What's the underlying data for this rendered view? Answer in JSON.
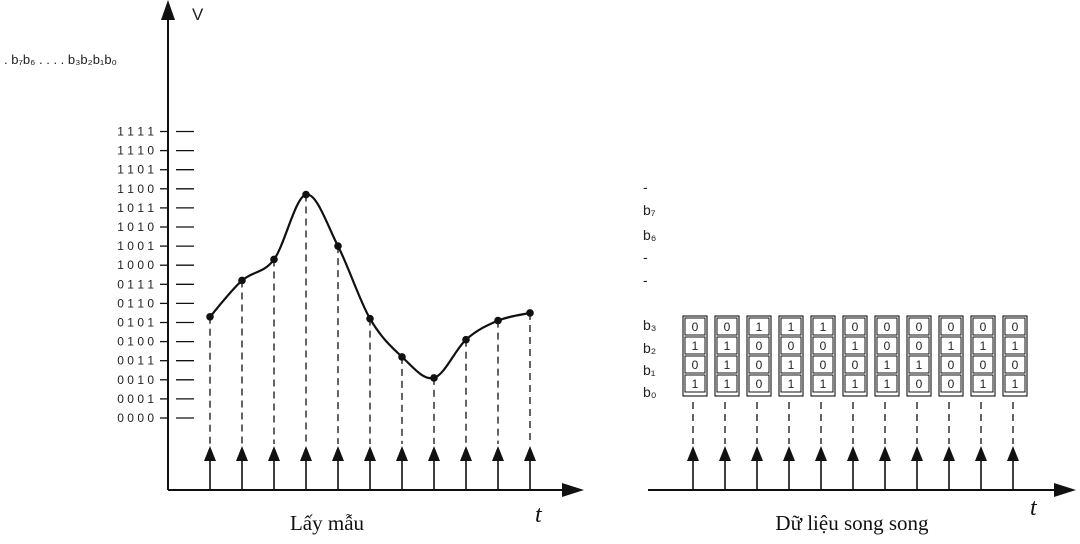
{
  "left_diagram": {
    "axis_v_label": "V",
    "bits_header": ". b₇b₆ . . . . b₃b₂b₁b₀",
    "levels": [
      "0 0 0 0",
      "0 0 0 1",
      "0 0 1 0",
      "0 0 1 1",
      "0 1 0 0",
      "0 1 0 1",
      "0 1 1 0",
      "0 1 1 1",
      "1 0 0 0",
      "1 0 0 1",
      "1 0 1 0",
      "1 0 1 1",
      "1 1 0 0",
      "1 1 0 1",
      "1 1 1 0",
      "1 1 1 1"
    ],
    "samples": [
      5.3,
      7.2,
      8.3,
      11.7,
      9.0,
      5.2,
      3.2,
      2.1,
      4.1,
      5.1,
      5.5
    ],
    "time_label": "t",
    "caption": "Lấy mẫu"
  },
  "right_diagram": {
    "bit_rows": [
      "-",
      "b₇",
      "b₆",
      "-",
      "-",
      "b₃",
      "b₂",
      "b₁",
      "b₀"
    ],
    "columns": [
      [
        "0",
        "1",
        "0",
        "1"
      ],
      [
        "0",
        "1",
        "1",
        "1"
      ],
      [
        "1",
        "0",
        "0",
        "0"
      ],
      [
        "1",
        "0",
        "1",
        "1"
      ],
      [
        "1",
        "0",
        "0",
        "1"
      ],
      [
        "0",
        "1",
        "0",
        "1"
      ],
      [
        "0",
        "0",
        "1",
        "1"
      ],
      [
        "0",
        "0",
        "1",
        "0"
      ],
      [
        "0",
        "1",
        "0",
        "0"
      ],
      [
        "0",
        "1",
        "0",
        "1"
      ],
      [
        "0",
        "1",
        "0",
        "1"
      ]
    ],
    "time_label": "t",
    "caption": "Dữ liệu song song"
  },
  "colors": {
    "ink": "#111111",
    "text": "#222222"
  }
}
